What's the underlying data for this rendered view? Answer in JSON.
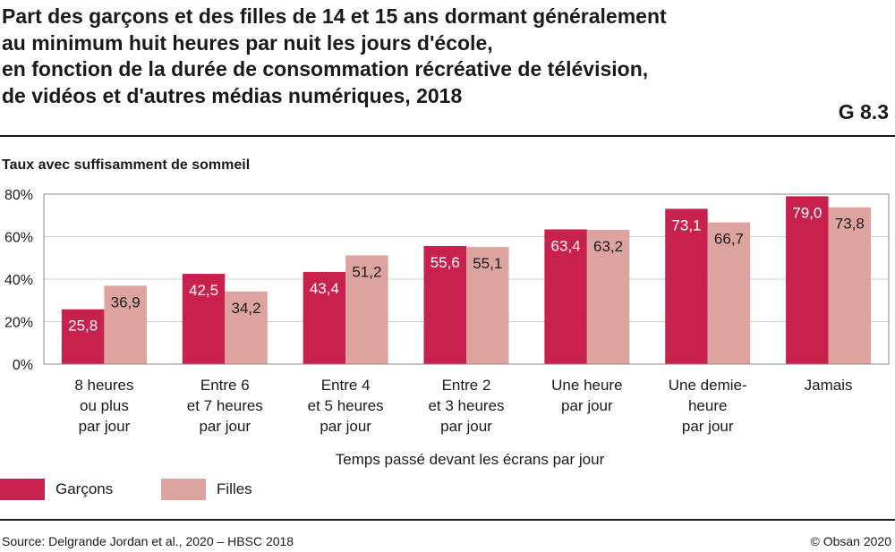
{
  "figure": {
    "title_lines": [
      "Part des garçons et des filles de 14 et 15 ans dormant généralement",
      "au minimum huit heures par nuit les jours d'école,",
      "en fonction de la durée de consommation récréative de télévision,",
      "de vidéos et d'autres médias numériques, 2018"
    ],
    "id": "G 8.3",
    "source": "Source: Delgrande Jordan et al., 2020 – HBSC 2018",
    "copyright": "© Obsan 2020"
  },
  "chart_data": {
    "type": "bar",
    "ylabel": "Taux avec suffisamment de sommeil",
    "xlabel": "Temps passé devant les écrans par jour",
    "ylim": [
      0,
      80
    ],
    "yticks": [
      0,
      20,
      40,
      60,
      80
    ],
    "ytick_labels": [
      "0%",
      "20%",
      "40%",
      "60%",
      "80%"
    ],
    "grid": true,
    "legend_position": "bottom-left",
    "categories": [
      [
        "8 heures",
        "ou plus",
        "par jour"
      ],
      [
        "Entre 6",
        "et 7 heures",
        "par jour"
      ],
      [
        "Entre 4",
        "et 5 heures",
        "par jour"
      ],
      [
        "Entre 2",
        "et 3 heures",
        "par jour"
      ],
      [
        "Une heure",
        "par jour"
      ],
      [
        "Une demie-",
        "heure",
        "par jour"
      ],
      [
        "Jamais"
      ]
    ],
    "series": [
      {
        "name": "Garçons",
        "color": "#c8214e",
        "label_color": "#ffffff",
        "values": [
          25.8,
          42.5,
          43.4,
          55.6,
          63.4,
          73.1,
          79.0
        ],
        "labels": [
          "25,8",
          "42,5",
          "43,4",
          "55,6",
          "63,4",
          "73,1",
          "79,0"
        ]
      },
      {
        "name": "Filles",
        "color": "#dda49f",
        "label_color": "#1a1a1a",
        "values": [
          36.9,
          34.2,
          51.2,
          55.1,
          63.2,
          66.7,
          73.8
        ],
        "labels": [
          "36,9",
          "34,2",
          "51,2",
          "55,1",
          "63,2",
          "66,7",
          "73,8"
        ]
      }
    ]
  }
}
